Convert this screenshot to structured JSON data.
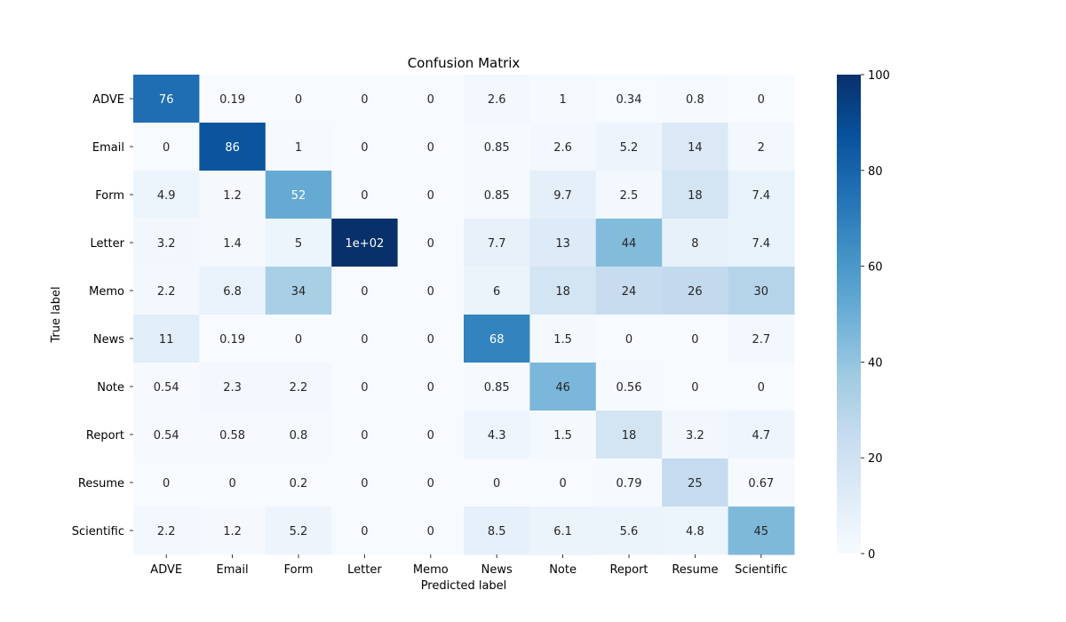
{
  "chart_data": {
    "type": "heatmap",
    "title": "Confusion Matrix",
    "xlabel": "Predicted label",
    "ylabel": "True label",
    "x_categories": [
      "ADVE",
      "Email",
      "Form",
      "Letter",
      "Memo",
      "News",
      "Note",
      "Report",
      "Resume",
      "Scientific"
    ],
    "y_categories": [
      "ADVE",
      "Email",
      "Form",
      "Letter",
      "Memo",
      "News",
      "Note",
      "Report",
      "Resume",
      "Scientific"
    ],
    "values": [
      [
        76,
        0.19,
        0,
        0,
        0,
        2.6,
        1,
        0.34,
        0.8,
        0
      ],
      [
        0,
        86,
        1,
        0,
        0,
        0.85,
        2.6,
        5.2,
        14,
        2
      ],
      [
        4.9,
        1.2,
        52,
        0,
        0,
        0.85,
        9.7,
        2.5,
        18,
        7.4
      ],
      [
        3.2,
        1.4,
        5,
        100,
        0,
        7.7,
        13,
        44,
        8,
        7.4
      ],
      [
        2.2,
        6.8,
        34,
        0,
        0,
        6,
        18,
        24,
        26,
        30
      ],
      [
        11,
        0.19,
        0,
        0,
        0,
        68,
        1.5,
        0,
        0,
        2.7
      ],
      [
        0.54,
        2.3,
        2.2,
        0,
        0,
        0.85,
        46,
        0.56,
        0,
        0
      ],
      [
        0.54,
        0.58,
        0.8,
        0,
        0,
        4.3,
        1.5,
        18,
        3.2,
        4.7
      ],
      [
        0,
        0,
        0.2,
        0,
        0,
        0,
        0,
        0.79,
        25,
        0.67
      ],
      [
        2.2,
        1.2,
        5.2,
        0,
        0,
        8.5,
        6.1,
        5.6,
        4.8,
        45
      ]
    ],
    "cell_labels": [
      [
        "76",
        "0.19",
        "0",
        "0",
        "0",
        "2.6",
        "1",
        "0.34",
        "0.8",
        "0"
      ],
      [
        "0",
        "86",
        "1",
        "0",
        "0",
        "0.85",
        "2.6",
        "5.2",
        "14",
        "2"
      ],
      [
        "4.9",
        "1.2",
        "52",
        "0",
        "0",
        "0.85",
        "9.7",
        "2.5",
        "18",
        "7.4"
      ],
      [
        "3.2",
        "1.4",
        "5",
        "1e+02",
        "0",
        "7.7",
        "13",
        "44",
        "8",
        "7.4"
      ],
      [
        "2.2",
        "6.8",
        "34",
        "0",
        "0",
        "6",
        "18",
        "24",
        "26",
        "30"
      ],
      [
        "11",
        "0.19",
        "0",
        "0",
        "0",
        "68",
        "1.5",
        "0",
        "0",
        "2.7"
      ],
      [
        "0.54",
        "2.3",
        "2.2",
        "0",
        "0",
        "0.85",
        "46",
        "0.56",
        "0",
        "0"
      ],
      [
        "0.54",
        "0.58",
        "0.8",
        "0",
        "0",
        "4.3",
        "1.5",
        "18",
        "3.2",
        "4.7"
      ],
      [
        "0",
        "0",
        "0.2",
        "0",
        "0",
        "0",
        "0",
        "0.79",
        "25",
        "0.67"
      ],
      [
        "2.2",
        "1.2",
        "5.2",
        "0",
        "0",
        "8.5",
        "6.1",
        "5.6",
        "4.8",
        "45"
      ]
    ],
    "colormap": "Blues",
    "color_range": [
      0,
      100
    ],
    "colorbar_ticks": [
      0,
      20,
      40,
      60,
      80,
      100
    ],
    "colorbar_tick_labels": [
      "0",
      "20",
      "40",
      "60",
      "80",
      "100"
    ]
  }
}
